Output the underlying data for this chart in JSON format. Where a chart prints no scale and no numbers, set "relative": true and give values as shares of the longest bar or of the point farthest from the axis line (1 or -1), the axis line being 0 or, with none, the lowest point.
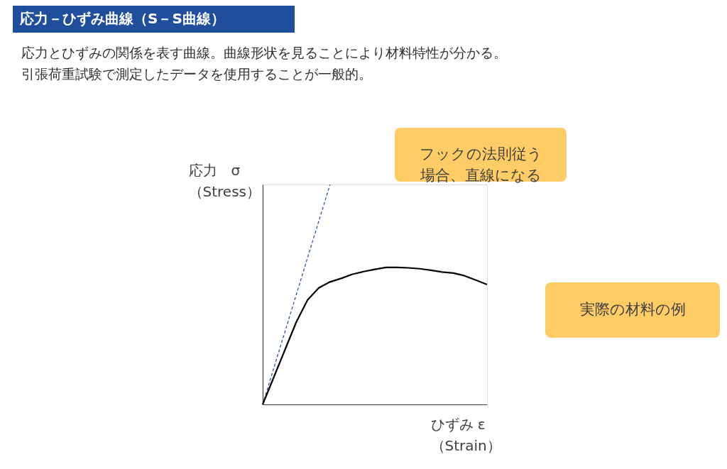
{
  "chart_data": {
    "type": "line",
    "relative": true,
    "title": "応力－ひずみ曲線（S－S曲線）",
    "subtitle": [
      "応力とひずみの関係を表す曲線。曲線形状を見ることにより材料特性が分かる。",
      "引張荷重試験で測定したデータを使用することが一般的。"
    ],
    "xlabel": "ひずみ ε\n（Strain）",
    "ylabel": "応力　σ\n（Stress）",
    "categories": [
      null,
      null,
      null,
      null,
      null,
      null,
      null,
      null,
      null,
      null,
      null,
      null,
      null,
      null,
      null,
      null,
      null,
      null,
      null,
      null,
      null
    ],
    "series": [
      {
        "color": "#2f5597",
        "line_style": "dashed",
        "values": [
          0,
          0.167,
          0.333,
          0.5,
          0.667,
          0.833,
          1.0,
          null,
          null,
          null,
          null,
          null,
          null,
          null,
          null,
          null,
          null,
          null,
          null,
          null,
          null
        ]
      },
      {
        "color": "#000000",
        "line_style": "solid",
        "values": [
          0,
          0.125,
          0.25,
          0.375,
          0.475,
          0.53,
          0.557,
          0.573,
          0.592,
          0.604,
          0.614,
          0.623,
          0.623,
          0.621,
          0.617,
          0.61,
          0.602,
          0.597,
          0.585,
          0.565,
          0.545
        ]
      }
    ],
    "annotations": [
      "フックの法則従う場合、直線になる",
      "実際の材料の例"
    ],
    "grid": false,
    "marker": "none"
  }
}
